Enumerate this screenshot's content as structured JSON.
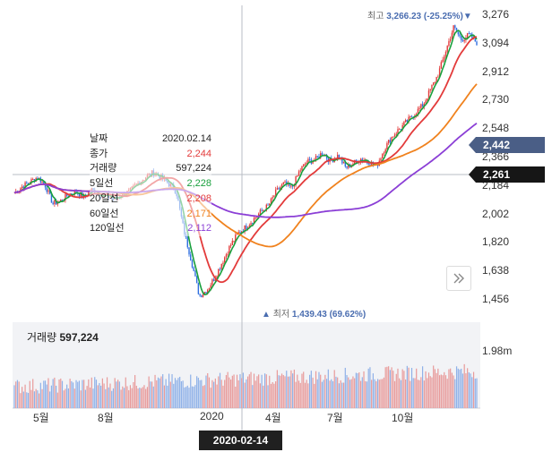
{
  "chart_data": {
    "type": "candlestick-line",
    "y_ticks": [
      "3,276",
      "3,094",
      "2,912",
      "2,730",
      "2,548",
      "2,366",
      "2,184",
      "2,002",
      "1,820",
      "1,638",
      "1,456"
    ],
    "y_range": [
      1456,
      3276
    ],
    "x_ticks": [
      "5월",
      "8월",
      "2020",
      "4월",
      "7월",
      "10월"
    ],
    "current_price_label": "2,442",
    "cursor_price_label": "2,261",
    "cursor_date_label": "2020-02-14",
    "high_marker": {
      "prefix": "최고",
      "value": "3,266.23 (-25.25%)",
      "arrow": "▼"
    },
    "low_marker": {
      "prefix": "최저",
      "value": "1,439.43 (69.62%)",
      "arrow": "▲"
    },
    "price_keypoints": [
      2140,
      2180,
      2210,
      2240,
      2190,
      2070,
      2090,
      2130,
      2150,
      2110,
      2160,
      2130,
      2120,
      2100,
      2130,
      2150,
      2200,
      2240,
      2270,
      2240,
      2200,
      2150,
      1900,
      1700,
      1480,
      1520,
      1600,
      1700,
      1800,
      1880,
      1920,
      1970,
      2020,
      2060,
      2150,
      2200,
      2170,
      2280,
      2340,
      2350,
      2400,
      2340,
      2380,
      2300,
      2330,
      2360,
      2340,
      2310,
      2420,
      2500,
      2550,
      2600,
      2650,
      2700,
      2800,
      2900,
      3050,
      3200,
      3120,
      3150,
      3100
    ],
    "volume_title": {
      "label": "거래량",
      "value": "597,224"
    },
    "volume_axis_label": "1.98m",
    "series": [
      {
        "name": "5일선",
        "color": "#19a03d"
      },
      {
        "name": "20일선",
        "color": "#e33b3b"
      },
      {
        "name": "60일선",
        "color": "#f0821e"
      },
      {
        "name": "120일선",
        "color": "#8b3fd6"
      }
    ],
    "tooltip": [
      {
        "label": "날짜",
        "value": "2020.02.14",
        "color": "#222222"
      },
      {
        "label": "종가",
        "value": "2,244",
        "color": "#e33b3b"
      },
      {
        "label": "거래량",
        "value": "597,224",
        "color": "#222222"
      },
      {
        "label": "5일선",
        "value": "2,228",
        "color": "#19a03d"
      },
      {
        "label": "20일선",
        "value": "2,208",
        "color": "#e33b3b"
      },
      {
        "label": "60일선",
        "value": "2,171",
        "color": "#f0821e"
      },
      {
        "label": "120일선",
        "value": "2,112",
        "color": "#8b3fd6"
      }
    ]
  }
}
